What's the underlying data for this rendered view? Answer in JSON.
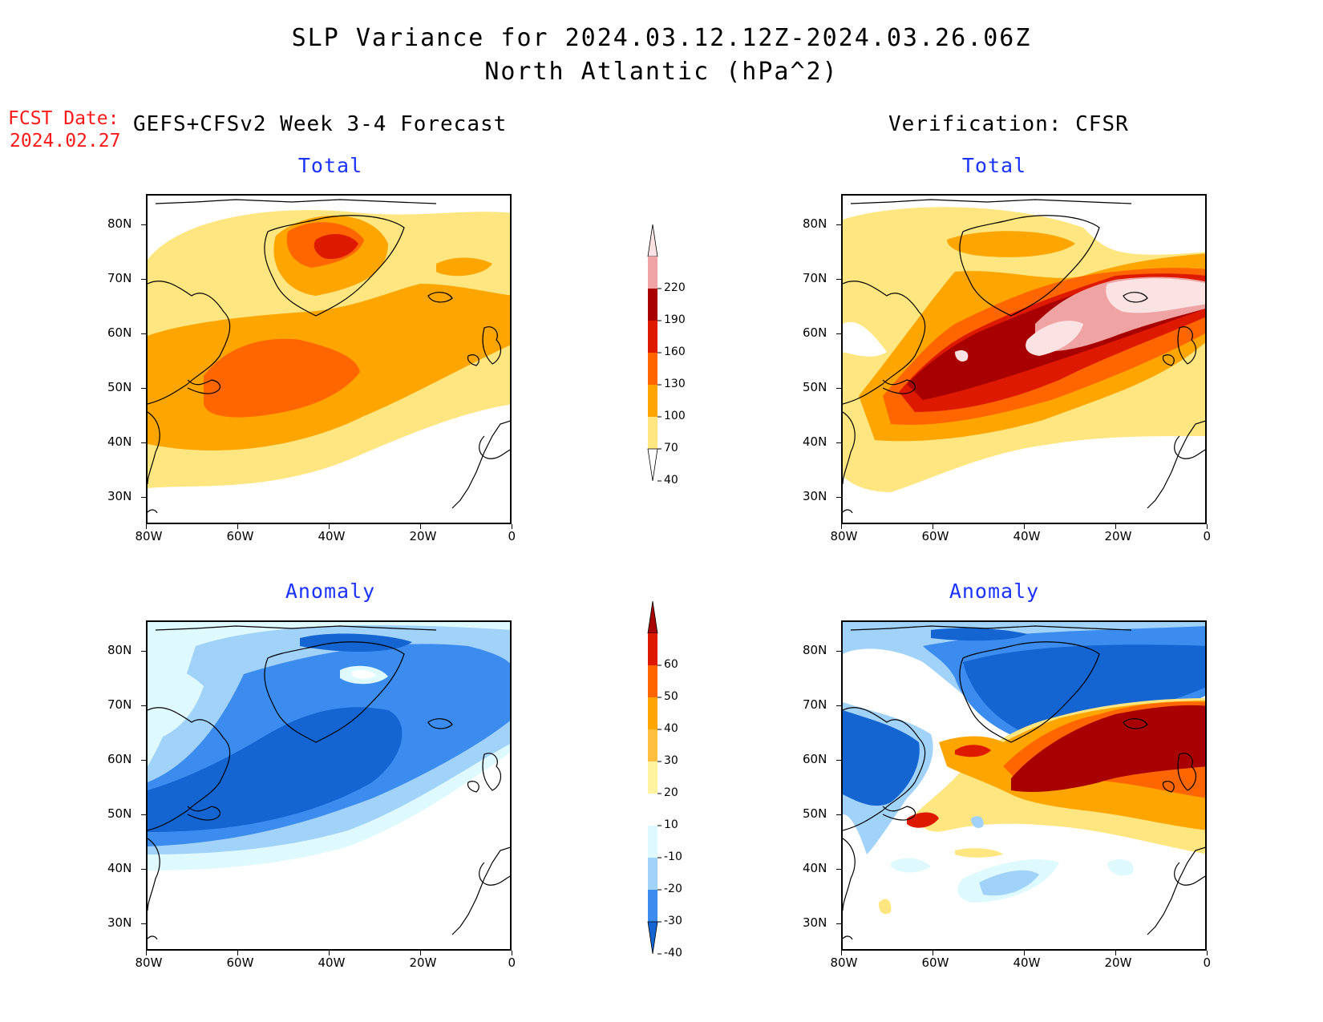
{
  "header": {
    "title_line1": "SLP Variance for 2024.03.12.12Z-2024.03.26.06Z",
    "title_line2": "North Atlantic (hPa^2)"
  },
  "fcst": {
    "label": "FCST Date:",
    "date": "2024.02.27"
  },
  "columns": {
    "left": "GEFS+CFSv2 Week 3-4 Forecast",
    "right": "Verification: CFSR"
  },
  "panels": {
    "fc_total": "Total",
    "vf_total": "Total",
    "fc_anom": "Anomaly",
    "vf_anom": "Anomaly"
  },
  "axes": {
    "lat_labels": [
      "80N",
      "70N",
      "60N",
      "50N",
      "40N",
      "30N"
    ],
    "lon_labels": [
      "80W",
      "60W",
      "40W",
      "20W",
      "0"
    ]
  },
  "colorbar_total": {
    "labels": [
      "220",
      "190",
      "160",
      "130",
      "100",
      "70",
      "40"
    ],
    "colors": [
      "#fbe3e3",
      "#f0a3a3",
      "#a80000",
      "#dd1a00",
      "#ff6600",
      "#ffa500",
      "#ffe680",
      "#ffffff"
    ]
  },
  "colorbar_anom": {
    "labels": [
      "60",
      "50",
      "40",
      "30",
      "20",
      "10",
      "-10",
      "-20",
      "-30",
      "-40"
    ],
    "colors": [
      "#a80000",
      "#dd1a00",
      "#ff6600",
      "#ffa500",
      "#ffbf40",
      "#fff3a0",
      "#ffffff",
      "#dffaff",
      "#a0d2fa",
      "#3c8cf0",
      "#1464d2"
    ]
  },
  "colors": {
    "title_blue": "#1a33ff",
    "fcst_red": "#ff1a1a"
  }
}
